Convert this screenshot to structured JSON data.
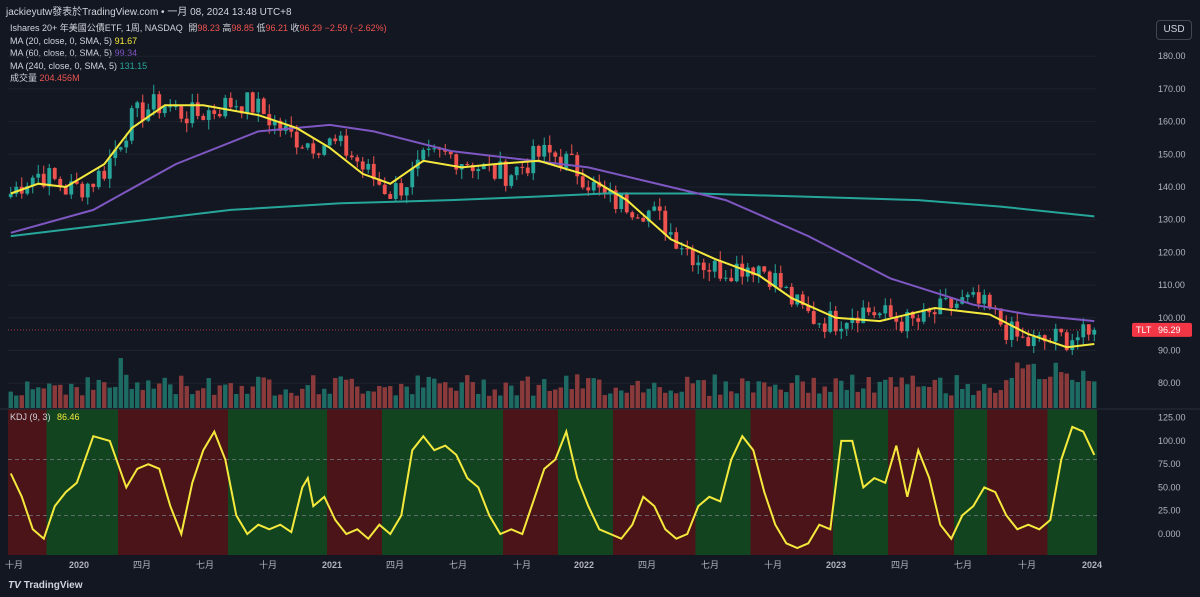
{
  "attribution": "jackieyutw發表於TradingView.com • 一月 08, 2024 13:48 UTC+8",
  "currency_button": "USD",
  "legend": {
    "symbol_line": "Ishares 20+ 年美國公債ETF, 1周, NASDAQ",
    "ohlc": {
      "open_label": "開",
      "open": "98.23",
      "high_label": "高",
      "high": "98.85",
      "low_label": "低",
      "low": "96.21",
      "close_label": "收",
      "close": "96.29",
      "change": "−2.59 (−2.62%)"
    },
    "ma": [
      {
        "label": "MA (20, close, 0, SMA, 5)",
        "value": "91.67",
        "color": "#f5e93d"
      },
      {
        "label": "MA (60, close, 0, SMA, 5)",
        "value": "99.34",
        "color": "#7e57c2"
      },
      {
        "label": "MA (240, close, 0, SMA, 5)",
        "value": "131.15",
        "color": "#26a69a"
      }
    ],
    "volume_label": "成交量",
    "volume_value": "204.456M"
  },
  "kdj_legend": {
    "label": "KDJ (9, 3)",
    "value": "86.46"
  },
  "price_tag": {
    "symbol": "TLT",
    "value": "96.29"
  },
  "logo_text": "TradingView",
  "colors": {
    "up": "#26a69a",
    "down": "#ef5350",
    "ma20": "#f5e93d",
    "ma60": "#7e57c2",
    "ma240": "#26a69a",
    "kdj": "#f5e93d",
    "bg": "#131722",
    "bull_zone": "#12451f",
    "bear_zone": "#4a1418",
    "text": "#d1d4dc"
  },
  "chart_data": {
    "type": "candlestick",
    "price_axis_ticks": [
      "80.00",
      "90.00",
      "100.00",
      "110.00",
      "120.00",
      "130.00",
      "140.00",
      "150.00",
      "160.00",
      "170.00",
      "180.00"
    ],
    "kdj_axis_ticks": [
      "0.000",
      "25.00",
      "50.00",
      "75.00",
      "100.00",
      "125.00"
    ],
    "time_axis_ticks": [
      "十月",
      "2020",
      "四月",
      "七月",
      "十月",
      "2021",
      "四月",
      "七月",
      "十月",
      "2022",
      "四月",
      "七月",
      "十月",
      "2023",
      "四月",
      "七月",
      "十月",
      "2024"
    ],
    "ma20": [
      [
        0,
        138
      ],
      [
        5,
        141
      ],
      [
        10,
        140
      ],
      [
        17,
        147
      ],
      [
        22,
        158
      ],
      [
        28,
        165
      ],
      [
        35,
        165
      ],
      [
        45,
        162
      ],
      [
        52,
        158
      ],
      [
        58,
        152
      ],
      [
        64,
        144
      ],
      [
        69,
        141
      ],
      [
        75,
        148
      ],
      [
        82,
        146
      ],
      [
        88,
        147
      ],
      [
        96,
        148
      ],
      [
        104,
        144
      ],
      [
        112,
        136
      ],
      [
        120,
        124
      ],
      [
        128,
        118
      ],
      [
        136,
        113
      ],
      [
        142,
        106
      ],
      [
        150,
        100
      ],
      [
        158,
        99
      ],
      [
        168,
        103
      ],
      [
        178,
        101
      ],
      [
        185,
        95
      ],
      [
        192,
        91
      ],
      [
        197,
        92
      ]
    ],
    "ma60": [
      [
        0,
        126
      ],
      [
        15,
        133
      ],
      [
        30,
        147
      ],
      [
        45,
        157
      ],
      [
        58,
        159
      ],
      [
        66,
        157
      ],
      [
        80,
        151
      ],
      [
        95,
        148
      ],
      [
        105,
        146
      ],
      [
        115,
        142
      ],
      [
        130,
        136
      ],
      [
        145,
        125
      ],
      [
        160,
        112
      ],
      [
        175,
        104
      ],
      [
        185,
        101
      ],
      [
        197,
        99
      ]
    ],
    "ma240": [
      [
        0,
        125
      ],
      [
        20,
        129
      ],
      [
        40,
        133
      ],
      [
        60,
        135
      ],
      [
        80,
        136
      ],
      [
        95,
        137
      ],
      [
        108,
        138
      ],
      [
        125,
        138
      ],
      [
        145,
        137
      ],
      [
        165,
        136
      ],
      [
        180,
        134
      ],
      [
        197,
        131
      ]
    ],
    "kdj": [
      [
        0,
        65
      ],
      [
        2,
        40
      ],
      [
        4,
        5
      ],
      [
        6,
        -5
      ],
      [
        8,
        30
      ],
      [
        10,
        45
      ],
      [
        12,
        55
      ],
      [
        15,
        105
      ],
      [
        18,
        100
      ],
      [
        21,
        50
      ],
      [
        23,
        70
      ],
      [
        25,
        75
      ],
      [
        27,
        70
      ],
      [
        29,
        30
      ],
      [
        31,
        0
      ],
      [
        33,
        55
      ],
      [
        35,
        90
      ],
      [
        37,
        110
      ],
      [
        39,
        80
      ],
      [
        41,
        20
      ],
      [
        43,
        0
      ],
      [
        45,
        10
      ],
      [
        47,
        5
      ],
      [
        49,
        10
      ],
      [
        51,
        2
      ],
      [
        53,
        50
      ],
      [
        54,
        60
      ],
      [
        55,
        30
      ],
      [
        57,
        40
      ],
      [
        59,
        15
      ],
      [
        61,
        0
      ],
      [
        63,
        5
      ],
      [
        65,
        -5
      ],
      [
        67,
        10
      ],
      [
        69,
        0
      ],
      [
        71,
        20
      ],
      [
        73,
        90
      ],
      [
        75,
        105
      ],
      [
        77,
        90
      ],
      [
        79,
        95
      ],
      [
        81,
        85
      ],
      [
        83,
        60
      ],
      [
        85,
        50
      ],
      [
        87,
        20
      ],
      [
        89,
        0
      ],
      [
        91,
        5
      ],
      [
        93,
        0
      ],
      [
        95,
        35
      ],
      [
        97,
        70
      ],
      [
        99,
        80
      ],
      [
        101,
        110
      ],
      [
        103,
        60
      ],
      [
        105,
        30
      ],
      [
        107,
        5
      ],
      [
        109,
        0
      ],
      [
        111,
        -5
      ],
      [
        113,
        10
      ],
      [
        115,
        40
      ],
      [
        117,
        30
      ],
      [
        119,
        5
      ],
      [
        121,
        -5
      ],
      [
        123,
        0
      ],
      [
        125,
        30
      ],
      [
        127,
        40
      ],
      [
        129,
        35
      ],
      [
        131,
        80
      ],
      [
        133,
        105
      ],
      [
        135,
        90
      ],
      [
        137,
        45
      ],
      [
        139,
        10
      ],
      [
        141,
        -10
      ],
      [
        143,
        -15
      ],
      [
        145,
        -10
      ],
      [
        147,
        10
      ],
      [
        149,
        5
      ],
      [
        151,
        100
      ],
      [
        153,
        100
      ],
      [
        155,
        50
      ],
      [
        157,
        60
      ],
      [
        159,
        55
      ],
      [
        161,
        95
      ],
      [
        163,
        40
      ],
      [
        165,
        90
      ],
      [
        167,
        60
      ],
      [
        169,
        10
      ],
      [
        171,
        -5
      ],
      [
        173,
        20
      ],
      [
        175,
        30
      ],
      [
        177,
        50
      ],
      [
        179,
        45
      ],
      [
        181,
        20
      ],
      [
        183,
        5
      ],
      [
        185,
        10
      ],
      [
        187,
        5
      ],
      [
        189,
        15
      ],
      [
        191,
        80
      ],
      [
        193,
        115
      ],
      [
        195,
        110
      ],
      [
        197,
        85
      ]
    ]
  }
}
